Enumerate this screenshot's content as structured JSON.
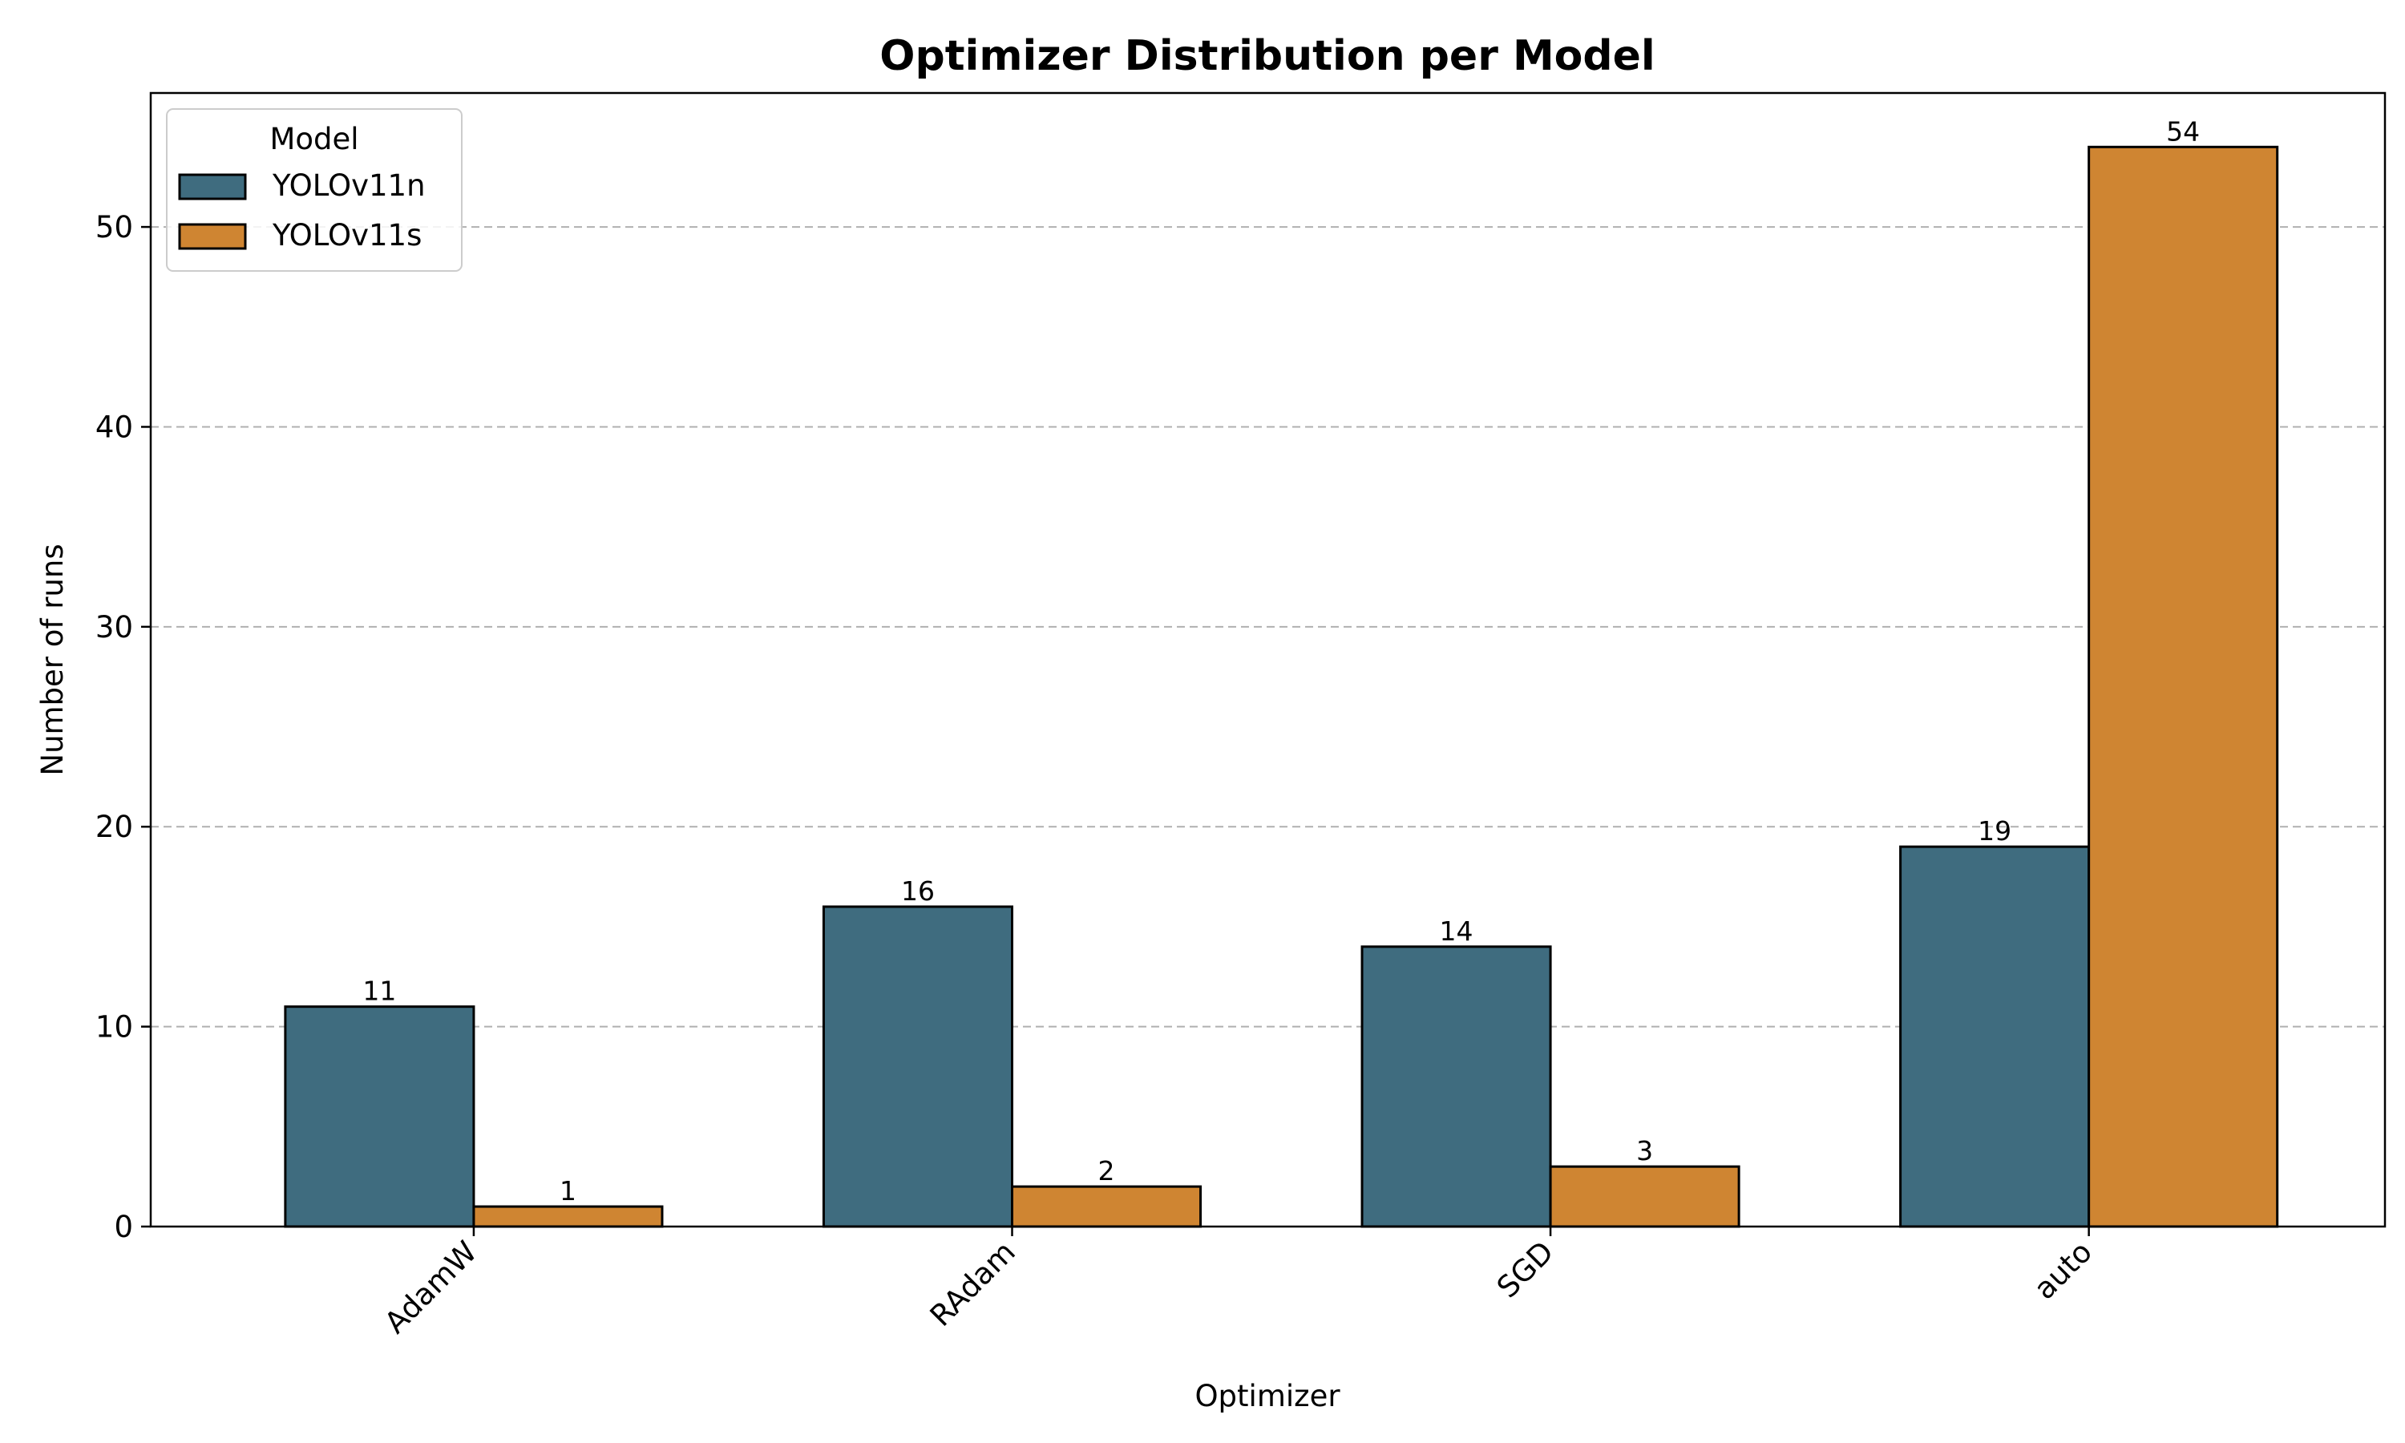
{
  "chart_data": {
    "type": "bar",
    "title": "Optimizer Distribution per Model",
    "xlabel": "Optimizer",
    "ylabel": "Number of runs",
    "categories": [
      "AdamW",
      "RAdam",
      "SGD",
      "auto"
    ],
    "series": [
      {
        "name": "YOLOv11n",
        "values": [
          11,
          16,
          14,
          19
        ],
        "color": "#3f6c7f"
      },
      {
        "name": "YOLOv11s",
        "values": [
          1,
          2,
          3,
          54
        ],
        "color": "#cf8532"
      }
    ],
    "ylim": [
      0,
      56.7
    ],
    "yticks": [
      0,
      10,
      20,
      30,
      40,
      50
    ],
    "grid": "y-dashed",
    "legend": {
      "title": "Model",
      "position": "top-left"
    },
    "xtick_rotation": "45",
    "data_labels": true
  }
}
